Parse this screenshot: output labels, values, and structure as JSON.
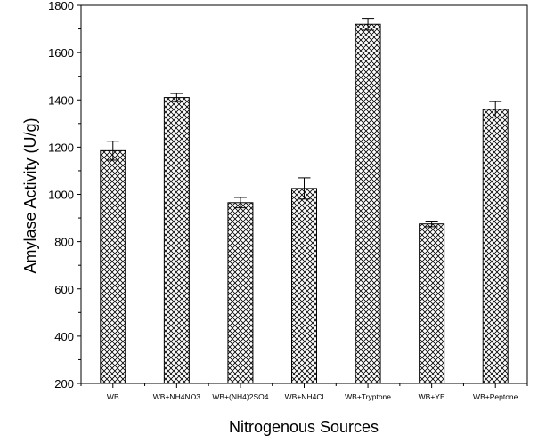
{
  "chart_data": {
    "type": "bar",
    "title": "",
    "xlabel": "Nitrogenous Sources",
    "ylabel": "Amylase Activity (U/g)",
    "ylim": [
      200,
      1800
    ],
    "yticks": [
      200,
      400,
      600,
      800,
      1000,
      1200,
      1400,
      1600,
      1800
    ],
    "categories": [
      "WB",
      "WB+NH4NO3",
      "WB+(NH4)2SO4",
      "WB+NH4Cl",
      "WB+Tryptone",
      "WB+YE",
      "WB+Peptone"
    ],
    "values": [
      1185,
      1410,
      965,
      1025,
      1720,
      875,
      1360
    ],
    "errors": [
      40,
      17,
      22,
      45,
      25,
      12,
      33
    ],
    "fill_pattern": "crosshatch",
    "grid": false
  }
}
